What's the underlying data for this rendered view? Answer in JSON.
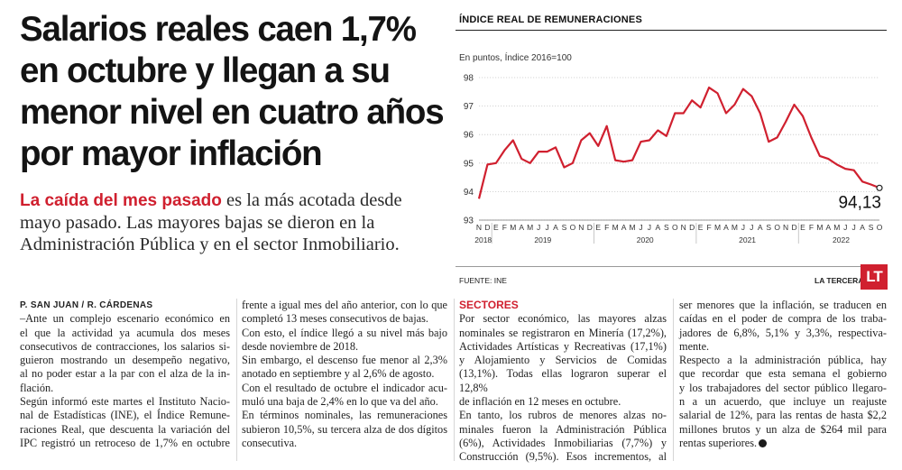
{
  "headline": {
    "lines": [
      "Salarios reales caen 1,7%",
      "en octubre y llegan a su",
      "menor nivel en cuatro años",
      "por mayor inflación"
    ]
  },
  "deck": {
    "highlight": "La caída del mes pasado",
    "line1_rest": " es la más acotada desde",
    "line2": "mayo pasado. Las mayores bajas se dieron en la",
    "line3": "Administración Pública y en el sector Inmobiliario."
  },
  "chart": {
    "title": "ÍNDICE REAL DE REMUNERACIONES",
    "subtitle": "En puntos, Índice 2016=100",
    "source": "FUENTE: INE",
    "brand": "LA TERCERA",
    "logo": "LT",
    "line_color": "#d0202f"
  },
  "chart_data": {
    "type": "line",
    "title": "ÍNDICE REAL DE REMUNERACIONES",
    "ylabel": "En puntos, Índice 2016=100",
    "ylim": [
      93,
      98
    ],
    "yticks": [
      "98",
      "97",
      "96",
      "95",
      "94",
      "93"
    ],
    "month_labels": [
      "N",
      "D",
      "E",
      "F",
      "M",
      "A",
      "M",
      "J",
      "J",
      "A",
      "S",
      "O",
      "N",
      "D",
      "E",
      "F",
      "M",
      "A",
      "M",
      "J",
      "J",
      "A",
      "S",
      "O",
      "N",
      "D",
      "E",
      "F",
      "M",
      "A",
      "M",
      "J",
      "J",
      "A",
      "S",
      "O",
      "N",
      "D",
      "E",
      "F",
      "M",
      "A",
      "M",
      "J",
      "J",
      "A",
      "S",
      "O"
    ],
    "year_labels": [
      {
        "label": "2018",
        "index": 0.5
      },
      {
        "label": "2019",
        "index": 7.5
      },
      {
        "label": "2020",
        "index": 19.5
      },
      {
        "label": "2021",
        "index": 31.5
      },
      {
        "label": "2022",
        "index": 42.5
      }
    ],
    "series": [
      {
        "name": "Índice real de remuneraciones",
        "values": [
          93.75,
          94.95,
          95.0,
          95.45,
          95.8,
          95.15,
          95.0,
          95.4,
          95.4,
          95.55,
          94.85,
          95.0,
          95.8,
          96.05,
          95.6,
          96.3,
          95.1,
          95.05,
          95.1,
          95.75,
          95.8,
          96.15,
          95.95,
          96.75,
          96.75,
          97.2,
          96.95,
          97.65,
          97.45,
          96.75,
          97.05,
          97.6,
          97.35,
          96.75,
          95.75,
          95.9,
          96.45,
          97.05,
          96.65,
          95.9,
          95.25,
          95.15,
          94.95,
          94.8,
          94.75,
          94.35,
          94.25,
          94.13
        ]
      }
    ],
    "last_value_label": "94,13"
  },
  "article": {
    "byline": "P. SAN JUAN / R. CÁRDENAS",
    "col1": [
      "–Ante un complejo escenario económico en",
      "el que la actividad ya acumula dos meses",
      "consecutivos de contracciones, los salarios si-",
      "guieron mostrando un desempeño negativo,",
      "al no poder estar a la par con el alza de la in-",
      "flación.",
      "Según informó este martes el Instituto Nacio-",
      "nal de Estadísticas (INE), el Índice Remune-",
      "raciones Real, que descuenta la variación del",
      "IPC registró un retroceso de 1,7% en octubre"
    ],
    "col2": [
      "frente a igual mes del año anterior, con lo que",
      "completó 13 meses consecutivos de bajas.",
      "Con esto, el índice llegó a su nivel más bajo",
      "desde noviembre de 2018.",
      "Sin embargo, el descenso fue menor al 2,3%",
      "anotado en septiembre y al 2,6% de agosto.",
      "Con el resultado de octubre el indicador acu-",
      "muló una baja de 2,4% en lo que va del año.",
      "En términos nominales, las remuneraciones",
      "subieron 10,5%, su tercera alza de dos dígitos",
      "consecutiva."
    ],
    "section_title": "SECTORES",
    "col3": [
      "Por sector económico, las mayores alzas",
      "nominales se registraron en Minería (17,2%),",
      "Actividades Artísticas y Recreativas (17,1%)",
      "y Alojamiento y Servicios de Comidas",
      "(13,1%). Todas ellas lograron superar el 12,8%",
      "de inflación en 12 meses en octubre.",
      "En tanto, los rubros de menores alzas no-",
      "minales fueron la Administración Pública",
      "(6%), Actividades Inmobiliarias (7,7%) y",
      "Construcción (9,5%). Esos incrementos, al"
    ],
    "col4": [
      "ser menores que la inflación, se traducen en",
      "caídas en el poder de compra de los traba-",
      "jadores de 6,8%, 5,1% y 3,3%, respectiva-",
      "mente.",
      "Respecto a la administración pública, hay",
      "que recordar que esta semana el gobierno",
      "y los trabajadores del sector público llegaro-",
      "n a un acuerdo, que incluye un reajuste",
      "salarial de 12%, para las rentas de hasta $2,2",
      "millones brutos y un alza de $264 mil para",
      "rentas superiores."
    ]
  }
}
